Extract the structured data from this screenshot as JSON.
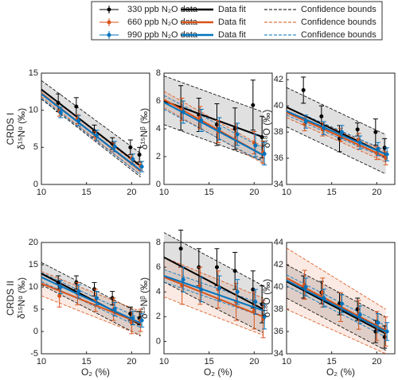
{
  "legend": [
    {
      "data": "330 ppb N₂O data",
      "fit": "Data fit",
      "bounds": "Confidence bounds",
      "color": "#000000"
    },
    {
      "data": "660 ppb N₂O data",
      "fit": "Data fit",
      "bounds": "Confidence bounds",
      "color": "#d95319"
    },
    {
      "data": "990 ppb N₂O data",
      "fit": "Data fit",
      "bounds": "Confidence bounds",
      "color": "#0072bd"
    }
  ],
  "chart_data": [
    {
      "type": "errorbar",
      "row_label": "CRDS I",
      "ylabel": "δ¹⁵Nᵅ (‰)",
      "xlim": [
        10,
        22
      ],
      "xticks": [
        10,
        15,
        20
      ],
      "ylim": [
        0,
        15
      ],
      "yticks": [
        0,
        5,
        10,
        15
      ],
      "x": [
        12,
        14,
        16,
        18,
        20,
        21
      ],
      "fit_x": [
        10,
        21
      ],
      "series": [
        {
          "values": [
            11,
            10.5,
            7.2,
            5.5,
            5,
            4
          ],
          "errors": [
            1.2,
            1.2,
            0.8,
            0.8,
            1,
            1
          ],
          "fit": [
            12.8,
            2.5
          ],
          "upper": [
            14,
            4.2
          ],
          "lower": [
            11.5,
            1
          ]
        },
        {
          "values": [
            9.8,
            8.8,
            6.5,
            5,
            3.5,
            2.5
          ],
          "errors": [
            0.6,
            0.6,
            0.6,
            0.6,
            0.6,
            0.6
          ],
          "fit": [
            12.3,
            1.8
          ],
          "upper": [
            12.8,
            2.3
          ],
          "lower": [
            11.8,
            1.3
          ]
        },
        {
          "values": [
            9.7,
            8.6,
            6.6,
            5.1,
            3.4,
            2.4
          ],
          "errors": [
            0.7,
            0.7,
            0.7,
            0.7,
            0.7,
            0.7
          ],
          "fit": [
            12.2,
            1.9
          ],
          "upper": [
            12.8,
            2.5
          ],
          "lower": [
            11.6,
            1.3
          ]
        }
      ]
    },
    {
      "type": "errorbar",
      "ylabel": "δ¹⁵Nᵝ (‰)",
      "xlim": [
        10,
        22
      ],
      "xticks": [
        10,
        15,
        20
      ],
      "ylim": [
        0,
        8
      ],
      "yticks": [
        0,
        2,
        4,
        6,
        8
      ],
      "x": [
        12,
        14,
        16,
        18,
        20,
        21
      ],
      "fit_x": [
        10,
        21
      ],
      "series": [
        {
          "values": [
            5.5,
            5,
            4.3,
            4,
            5.7,
            3.4
          ],
          "errors": [
            1.6,
            1.2,
            1.5,
            1.5,
            1.8,
            1.5
          ],
          "fit": [
            6,
            3.4
          ],
          "upper": [
            7.8,
            5.2
          ],
          "lower": [
            4.3,
            1.7
          ]
        },
        {
          "values": [
            5.4,
            4.8,
            3.8,
            3.6,
            3,
            2.3
          ],
          "errors": [
            0.8,
            0.8,
            0.8,
            0.8,
            0.8,
            0.8
          ],
          "fit": [
            6.1,
            2.1
          ],
          "upper": [
            6.7,
            2.7
          ],
          "lower": [
            5.5,
            1.5
          ]
        },
        {
          "values": [
            5.2,
            4.6,
            4,
            3.6,
            2.8,
            2.2
          ],
          "errors": [
            0.8,
            0.8,
            0.8,
            0.8,
            0.8,
            0.8
          ],
          "fit": [
            5.9,
            2.1
          ],
          "upper": [
            6.4,
            2.6
          ],
          "lower": [
            5.4,
            1.6
          ]
        }
      ]
    },
    {
      "type": "errorbar",
      "ylabel": "δ¹⁸O (‰)",
      "xlim": [
        10,
        22
      ],
      "xticks": [
        10,
        15,
        20
      ],
      "ylim": [
        34,
        42.5
      ],
      "yticks": [
        34,
        36,
        38,
        40,
        42
      ],
      "x": [
        12,
        14,
        16,
        18,
        20,
        21
      ],
      "fit_x": [
        10,
        21
      ],
      "series": [
        {
          "values": [
            41.2,
            39.2,
            37.5,
            38.2,
            38,
            36.8
          ],
          "errors": [
            1,
            0.8,
            1,
            0.5,
            1,
            0.7
          ],
          "fit": [
            39.9,
            36.3
          ],
          "upper": [
            41.4,
            37.8
          ],
          "lower": [
            38.4,
            34.8
          ]
        },
        {
          "values": [
            38.6,
            38.2,
            37.8,
            37.4,
            36.4,
            36
          ],
          "errors": [
            0.5,
            0.5,
            0.5,
            0.5,
            0.5,
            0.5
          ],
          "fit": [
            39.5,
            36.1
          ],
          "upper": [
            39.9,
            36.5
          ],
          "lower": [
            39.1,
            35.7
          ]
        },
        {
          "values": [
            38.8,
            38.3,
            38,
            37.2,
            36.7,
            36.3
          ],
          "errors": [
            0.5,
            0.5,
            0.5,
            0.5,
            0.5,
            0.5
          ],
          "fit": [
            39.6,
            36.3
          ],
          "upper": [
            39.9,
            36.6
          ],
          "lower": [
            39.3,
            36
          ]
        }
      ]
    },
    {
      "type": "errorbar",
      "row_label": "CRDS II",
      "ylabel": "δ¹⁵Nᵅ (‰)",
      "xlabel": "O₂ (%)",
      "xlim": [
        10,
        22
      ],
      "xticks": [
        10,
        15,
        20
      ],
      "ylim": [
        -5,
        20
      ],
      "yticks": [
        -5,
        0,
        5,
        10,
        15,
        20
      ],
      "x": [
        12,
        14,
        16,
        18,
        20,
        21
      ],
      "fit_x": [
        10,
        21
      ],
      "series": [
        {
          "values": [
            11,
            11,
            9.5,
            7.5,
            4,
            3
          ],
          "errors": [
            1.5,
            1.5,
            1.5,
            1.5,
            1.5,
            1.5
          ],
          "fit": [
            13,
            1.5
          ],
          "upper": [
            15.5,
            4
          ],
          "lower": [
            10.5,
            -1
          ]
        },
        {
          "values": [
            8,
            8.5,
            7,
            5,
            2,
            2.5
          ],
          "errors": [
            2.5,
            2.5,
            2.5,
            2.5,
            2.5,
            2.5
          ],
          "fit": [
            10.8,
            1.8
          ],
          "upper": [
            13.5,
            4.5
          ],
          "lower": [
            8,
            -0.8
          ]
        },
        {
          "values": [
            10,
            9,
            7.5,
            5,
            3,
            2.5
          ],
          "errors": [
            1.5,
            1.5,
            1.5,
            1.5,
            1.5,
            1.5
          ],
          "fit": [
            12.2,
            1.9
          ],
          "upper": [
            13.2,
            2.9
          ],
          "lower": [
            11.2,
            0.9
          ]
        }
      ]
    },
    {
      "type": "errorbar",
      "ylabel": "δ¹⁵Nᵝ (‰)",
      "xlabel": "O₂ (%)",
      "xlim": [
        10,
        22
      ],
      "xticks": [
        10,
        15,
        20
      ],
      "ylim": [
        -1,
        8
      ],
      "yticks": [
        0,
        2,
        4,
        6,
        8
      ],
      "x": [
        12,
        14,
        16,
        18,
        20,
        21
      ],
      "fit_x": [
        10,
        21
      ],
      "series": [
        {
          "values": [
            7.5,
            6,
            6,
            5.7,
            4.2,
            3
          ],
          "errors": [
            1.5,
            1.5,
            1.5,
            1.5,
            1.5,
            1.5
          ],
          "fit": [
            6.8,
            2.6
          ],
          "upper": [
            8.8,
            4.5
          ],
          "lower": [
            4.8,
            0.7
          ]
        },
        {
          "values": [
            4.5,
            4.5,
            4.2,
            3.2,
            2.5,
            1.8
          ],
          "errors": [
            1.5,
            1.5,
            1.5,
            1.5,
            1.5,
            1.5
          ],
          "fit": [
            5.2,
            2
          ],
          "upper": [
            6.8,
            3.5
          ],
          "lower": [
            3.6,
            0.5
          ]
        },
        {
          "values": [
            5,
            4.2,
            4.3,
            4,
            3.2,
            2
          ],
          "errors": [
            1,
            1,
            1,
            1,
            1,
            1
          ],
          "fit": [
            5.3,
            2.5
          ],
          "upper": [
            5.8,
            3
          ],
          "lower": [
            4.8,
            2
          ]
        }
      ]
    },
    {
      "type": "errorbar",
      "ylabel": "δ¹⁸O (‰)",
      "xlabel": "O₂ (%)",
      "xlim": [
        10,
        22
      ],
      "xticks": [
        10,
        15,
        20
      ],
      "ylim": [
        34,
        44
      ],
      "yticks": [
        34,
        36,
        38,
        40,
        42,
        44
      ],
      "x": [
        12,
        14,
        16,
        18,
        20,
        21
      ],
      "fit_x": [
        10,
        21
      ],
      "series": [
        {
          "values": [
            40,
            39.5,
            38.5,
            38,
            36,
            35.5
          ],
          "errors": [
            1,
            1,
            1,
            1,
            1,
            1
          ],
          "fit": [
            40.5,
            35.8
          ],
          "upper": [
            42,
            37.3
          ],
          "lower": [
            39,
            34.3
          ]
        },
        {
          "values": [
            40.2,
            39.5,
            38.2,
            37.5,
            36.5,
            36
          ],
          "errors": [
            1.3,
            1.3,
            1.3,
            1.3,
            1.3,
            1.3
          ],
          "fit": [
            40.8,
            36.1
          ],
          "upper": [
            43.5,
            38
          ],
          "lower": [
            38,
            34
          ]
        },
        {
          "values": [
            40,
            39,
            38.5,
            37.5,
            36.8,
            36
          ],
          "errors": [
            0.8,
            0.8,
            0.8,
            0.8,
            0.8,
            0.8
          ],
          "fit": [
            40.6,
            36
          ],
          "upper": [
            41.1,
            36.5
          ],
          "lower": [
            40.1,
            35.5
          ]
        }
      ]
    }
  ]
}
